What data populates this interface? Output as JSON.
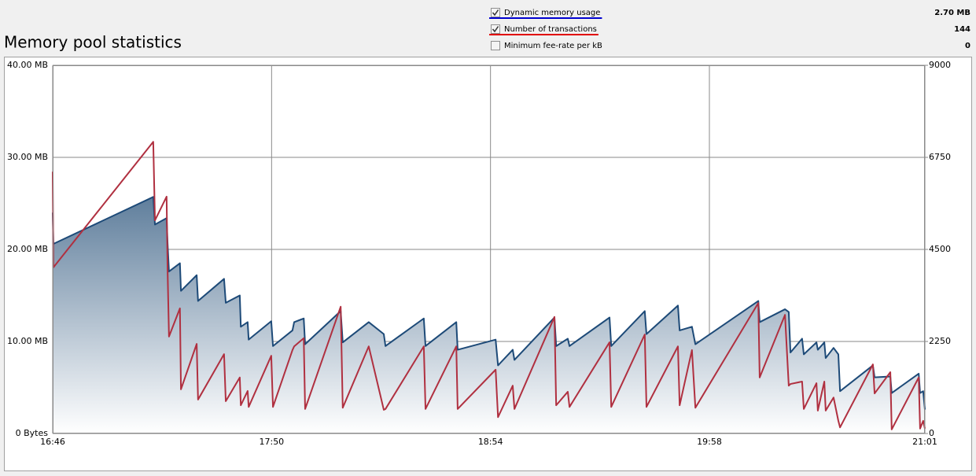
{
  "chart_data": {
    "type": "line",
    "title": "Memory pool statistics",
    "x": [
      1006,
      1006.2,
      1035.4,
      1035.9,
      1039.3,
      1039.6,
      1040.0,
      1043.2,
      1043.5,
      1048.1,
      1048.5,
      1056.1,
      1056.6,
      1060.7,
      1061.0,
      1063.0,
      1063.3,
      1069.9,
      1070.4,
      1076.1,
      1076.6,
      1079.4,
      1079.8,
      1090.2,
      1090.8,
      1098.4,
      1102.8,
      1103.3,
      1114.5,
      1115.0,
      1124.0,
      1124.4,
      1135.5,
      1136.2,
      1140.5,
      1141.0,
      1152.7,
      1153.2,
      1156.6,
      1157.1,
      1168.8,
      1169.3,
      1179.1,
      1179.6,
      1188.8,
      1189.3,
      1192.9,
      1193.9,
      1212.3,
      1212.7,
      1220.1,
      1221.2,
      1221.7,
      1225.1,
      1225.6,
      1229.3,
      1229.7,
      1231.6,
      1232.0,
      1234.3,
      1235.7,
      1236.2,
      1245.8,
      1246.3,
      1250.9,
      1251.3,
      1259.2,
      1259.6,
      1260.5,
      1261
    ],
    "xlim": [
      1006,
      1261
    ],
    "xticks": [
      {
        "value": 1006,
        "label": "16:46"
      },
      {
        "value": 1070,
        "label": "17:50"
      },
      {
        "value": 1134,
        "label": "18:54"
      },
      {
        "value": 1198,
        "label": "19:58"
      },
      {
        "value": 1261,
        "label": "21:01"
      }
    ],
    "ylim": [
      0,
      40
    ],
    "yticks": [
      {
        "value": 0,
        "label": "0 Bytes"
      },
      {
        "value": 10,
        "label": "10.00 MB"
      },
      {
        "value": 20,
        "label": "20.00 MB"
      },
      {
        "value": 30,
        "label": "30.00 MB"
      },
      {
        "value": 40,
        "label": "40.00 MB"
      }
    ],
    "y2lim": [
      0,
      9000
    ],
    "y2ticks": [
      0,
      2250,
      4500,
      6750,
      9000
    ],
    "grid": true,
    "series": [
      {
        "name": "Dynamic memory usage",
        "color": "#1d4a78",
        "legend_color": "#0000d0",
        "fill": true,
        "checked": true,
        "current": {
          "value": 2.7,
          "label": "2.70 MB"
        },
        "values": [
          24.0,
          20.6,
          25.7,
          22.7,
          23.4,
          20.6,
          17.6,
          18.5,
          15.5,
          17.2,
          14.4,
          16.8,
          14.2,
          15.0,
          11.6,
          12.1,
          10.2,
          12.2,
          9.5,
          11.2,
          12.1,
          12.5,
          9.7,
          13.3,
          9.9,
          12.1,
          10.8,
          9.5,
          12.5,
          9.5,
          12.1,
          9.1,
          10.2,
          7.4,
          9.1,
          8.0,
          12.6,
          9.5,
          10.3,
          9.5,
          12.6,
          9.5,
          13.3,
          10.8,
          13.9,
          11.2,
          11.6,
          9.7,
          14.4,
          12.1,
          13.5,
          13.2,
          8.8,
          10.3,
          8.6,
          9.9,
          9.1,
          9.9,
          8.2,
          9.3,
          8.6,
          4.6,
          7.4,
          6.1,
          6.2,
          4.4,
          6.5,
          4.4,
          4.6,
          2.6
        ]
      },
      {
        "name": "Number of transactions",
        "color": "#b03040",
        "legend_color": "#e00000",
        "axis": "y2",
        "checked": true,
        "current": 144,
        "values": [
          6400,
          4060,
          7130,
          5210,
          5790,
          3960,
          2370,
          3060,
          1080,
          2190,
          830,
          1940,
          790,
          1370,
          690,
          1040,
          650,
          1900,
          650,
          2040,
          2130,
          2330,
          600,
          3100,
          630,
          2130,
          580,
          600,
          2130,
          600,
          2130,
          600,
          1560,
          400,
          1170,
          600,
          2850,
          690,
          1020,
          650,
          2230,
          650,
          2420,
          650,
          2130,
          690,
          2040,
          630,
          3190,
          1370,
          2900,
          1170,
          1210,
          1270,
          600,
          1230,
          560,
          1270,
          560,
          880,
          310,
          150,
          1690,
          980,
          1500,
          100,
          1370,
          120,
          310,
          120
        ]
      }
    ],
    "extra_legend": [
      {
        "name": "Minimum fee-rate per kB",
        "checked": false,
        "current": 0
      }
    ]
  }
}
